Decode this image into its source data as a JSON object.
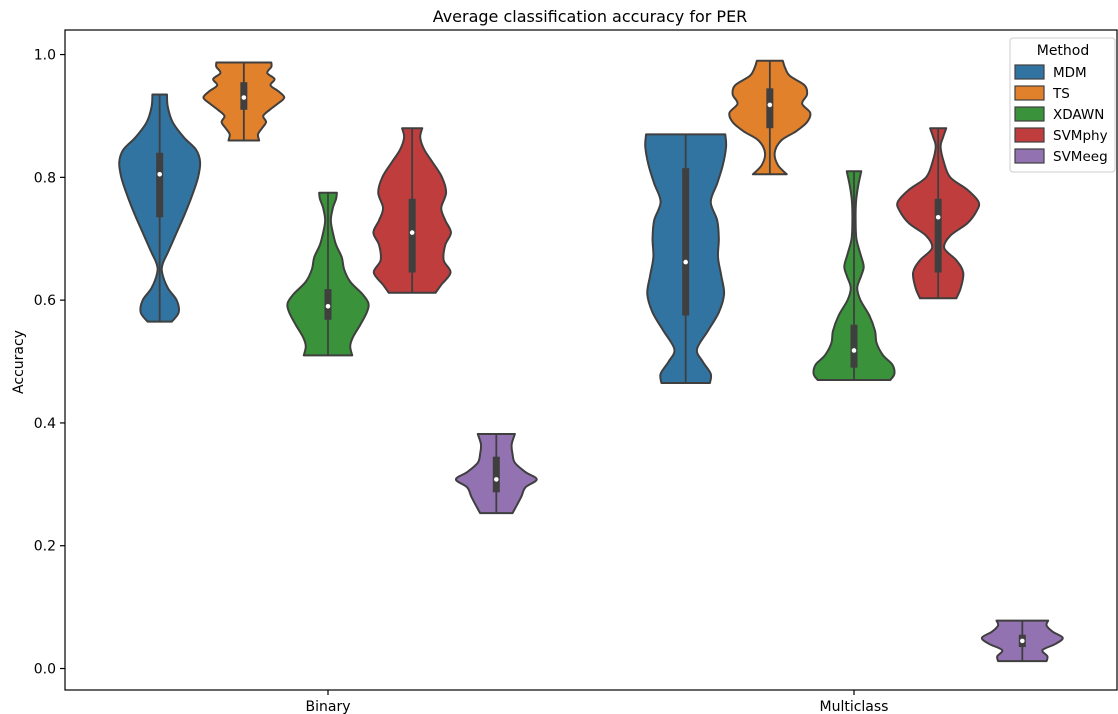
{
  "chart_data": {
    "type": "violin",
    "title": "Average classification accuracy for PER",
    "xlabel": "",
    "ylabel": "Accuracy",
    "categories": [
      "Binary",
      "Multiclass"
    ],
    "ylim": [
      -0.035,
      1.04
    ],
    "yticks": [
      0.0,
      0.2,
      0.4,
      0.6,
      0.8,
      1.0
    ],
    "ytick_labels": [
      "0.0",
      "0.2",
      "0.4",
      "0.6",
      "0.8",
      "1.0"
    ],
    "grid": false,
    "legend": {
      "title": "Method",
      "position": "top-right"
    },
    "series": [
      {
        "name": "MDM",
        "color": "#3274a1",
        "violins": [
          {
            "min": 0.565,
            "max": 0.935,
            "q1": 0.735,
            "median": 0.805,
            "q3": 0.84,
            "profile": [
              [
                0.565,
                0.3
              ],
              [
                0.58,
                0.47
              ],
              [
                0.6,
                0.42
              ],
              [
                0.62,
                0.2
              ],
              [
                0.645,
                0.06
              ],
              [
                0.66,
                0.08
              ],
              [
                0.68,
                0.22
              ],
              [
                0.71,
                0.42
              ],
              [
                0.74,
                0.62
              ],
              [
                0.77,
                0.8
              ],
              [
                0.8,
                0.95
              ],
              [
                0.825,
                1.0
              ],
              [
                0.845,
                0.9
              ],
              [
                0.865,
                0.6
              ],
              [
                0.89,
                0.32
              ],
              [
                0.915,
                0.2
              ],
              [
                0.935,
                0.18
              ]
            ]
          },
          {
            "min": 0.465,
            "max": 0.87,
            "q1": 0.575,
            "median": 0.662,
            "q3": 0.815,
            "profile": [
              [
                0.465,
                0.6
              ],
              [
                0.48,
                0.62
              ],
              [
                0.5,
                0.42
              ],
              [
                0.52,
                0.28
              ],
              [
                0.55,
                0.55
              ],
              [
                0.58,
                0.82
              ],
              [
                0.61,
                0.95
              ],
              [
                0.64,
                0.88
              ],
              [
                0.67,
                0.8
              ],
              [
                0.7,
                0.82
              ],
              [
                0.73,
                0.78
              ],
              [
                0.76,
                0.62
              ],
              [
                0.79,
                0.78
              ],
              [
                0.82,
                0.92
              ],
              [
                0.85,
                1.0
              ],
              [
                0.87,
                0.98
              ]
            ]
          }
        ]
      },
      {
        "name": "TS",
        "color": "#e1812c",
        "violins": [
          {
            "min": 0.86,
            "max": 0.987,
            "q1": 0.91,
            "median": 0.93,
            "q3": 0.955,
            "profile": [
              [
                0.86,
                0.38
              ],
              [
                0.87,
                0.35
              ],
              [
                0.88,
                0.45
              ],
              [
                0.89,
                0.55
              ],
              [
                0.9,
                0.48
              ],
              [
                0.91,
                0.64
              ],
              [
                0.92,
                0.84
              ],
              [
                0.93,
                1.0
              ],
              [
                0.94,
                0.86
              ],
              [
                0.95,
                0.66
              ],
              [
                0.96,
                0.76
              ],
              [
                0.97,
                0.58
              ],
              [
                0.98,
                0.68
              ],
              [
                0.987,
                0.68
              ]
            ]
          },
          {
            "min": 0.805,
            "max": 0.99,
            "q1": 0.88,
            "median": 0.918,
            "q3": 0.945,
            "profile": [
              [
                0.805,
                0.42
              ],
              [
                0.82,
                0.2
              ],
              [
                0.84,
                0.12
              ],
              [
                0.86,
                0.28
              ],
              [
                0.875,
                0.65
              ],
              [
                0.89,
                0.92
              ],
              [
                0.905,
                1.0
              ],
              [
                0.92,
                0.8
              ],
              [
                0.935,
                0.92
              ],
              [
                0.95,
                0.86
              ],
              [
                0.965,
                0.5
              ],
              [
                0.978,
                0.38
              ],
              [
                0.99,
                0.32
              ]
            ]
          }
        ]
      },
      {
        "name": "XDAWN",
        "color": "#3a923a",
        "violins": [
          {
            "min": 0.51,
            "max": 0.775,
            "q1": 0.568,
            "median": 0.59,
            "q3": 0.618,
            "profile": [
              [
                0.51,
                0.6
              ],
              [
                0.525,
                0.55
              ],
              [
                0.54,
                0.62
              ],
              [
                0.56,
                0.8
              ],
              [
                0.58,
                0.96
              ],
              [
                0.595,
                1.0
              ],
              [
                0.61,
                0.85
              ],
              [
                0.63,
                0.55
              ],
              [
                0.65,
                0.4
              ],
              [
                0.67,
                0.34
              ],
              [
                0.69,
                0.2
              ],
              [
                0.71,
                0.12
              ],
              [
                0.73,
                0.07
              ],
              [
                0.75,
                0.12
              ],
              [
                0.765,
                0.2
              ],
              [
                0.775,
                0.22
              ]
            ]
          },
          {
            "min": 0.47,
            "max": 0.81,
            "q1": 0.49,
            "median": 0.518,
            "q3": 0.56,
            "profile": [
              [
                0.47,
                0.9
              ],
              [
                0.48,
                1.0
              ],
              [
                0.495,
                0.95
              ],
              [
                0.51,
                0.72
              ],
              [
                0.53,
                0.56
              ],
              [
                0.55,
                0.52
              ],
              [
                0.575,
                0.38
              ],
              [
                0.6,
                0.16
              ],
              [
                0.62,
                0.08
              ],
              [
                0.64,
                0.18
              ],
              [
                0.655,
                0.24
              ],
              [
                0.675,
                0.16
              ],
              [
                0.7,
                0.06
              ],
              [
                0.73,
                0.04
              ],
              [
                0.76,
                0.05
              ],
              [
                0.785,
                0.1
              ],
              [
                0.81,
                0.18
              ]
            ]
          }
        ]
      },
      {
        "name": "SVMphy",
        "color": "#c03d3e",
        "violins": [
          {
            "min": 0.612,
            "max": 0.88,
            "q1": 0.645,
            "median": 0.71,
            "q3": 0.765,
            "profile": [
              [
                0.612,
                0.58
              ],
              [
                0.625,
                0.72
              ],
              [
                0.645,
                0.95
              ],
              [
                0.665,
                0.78
              ],
              [
                0.69,
                0.82
              ],
              [
                0.71,
                0.96
              ],
              [
                0.73,
                0.82
              ],
              [
                0.75,
                0.72
              ],
              [
                0.775,
                0.84
              ],
              [
                0.8,
                0.74
              ],
              [
                0.825,
                0.5
              ],
              [
                0.845,
                0.3
              ],
              [
                0.865,
                0.2
              ],
              [
                0.88,
                0.25
              ]
            ]
          },
          {
            "min": 0.603,
            "max": 0.88,
            "q1": 0.645,
            "median": 0.735,
            "q3": 0.765,
            "profile": [
              [
                0.603,
                0.45
              ],
              [
                0.62,
                0.56
              ],
              [
                0.645,
                0.62
              ],
              [
                0.665,
                0.45
              ],
              [
                0.685,
                0.15
              ],
              [
                0.705,
                0.3
              ],
              [
                0.725,
                0.72
              ],
              [
                0.745,
                0.95
              ],
              [
                0.76,
                1.0
              ],
              [
                0.78,
                0.72
              ],
              [
                0.8,
                0.3
              ],
              [
                0.825,
                0.14
              ],
              [
                0.85,
                0.06
              ],
              [
                0.865,
                0.12
              ],
              [
                0.88,
                0.2
              ]
            ]
          }
        ]
      },
      {
        "name": "SVMeeg",
        "color": "#9372b2",
        "violins": [
          {
            "min": 0.253,
            "max": 0.382,
            "q1": 0.287,
            "median": 0.308,
            "q3": 0.345,
            "profile": [
              [
                0.253,
                0.4
              ],
              [
                0.265,
                0.5
              ],
              [
                0.28,
                0.62
              ],
              [
                0.295,
                0.72
              ],
              [
                0.308,
                1.0
              ],
              [
                0.32,
                0.72
              ],
              [
                0.335,
                0.46
              ],
              [
                0.35,
                0.4
              ],
              [
                0.365,
                0.38
              ],
              [
                0.382,
                0.46
              ]
            ]
          },
          {
            "min": 0.012,
            "max": 0.078,
            "q1": 0.035,
            "median": 0.045,
            "q3": 0.055,
            "profile": [
              [
                0.012,
                0.6
              ],
              [
                0.02,
                0.62
              ],
              [
                0.03,
                0.5
              ],
              [
                0.04,
                0.82
              ],
              [
                0.05,
                1.0
              ],
              [
                0.06,
                0.75
              ],
              [
                0.07,
                0.6
              ],
              [
                0.078,
                0.64
              ]
            ]
          }
        ]
      }
    ]
  }
}
